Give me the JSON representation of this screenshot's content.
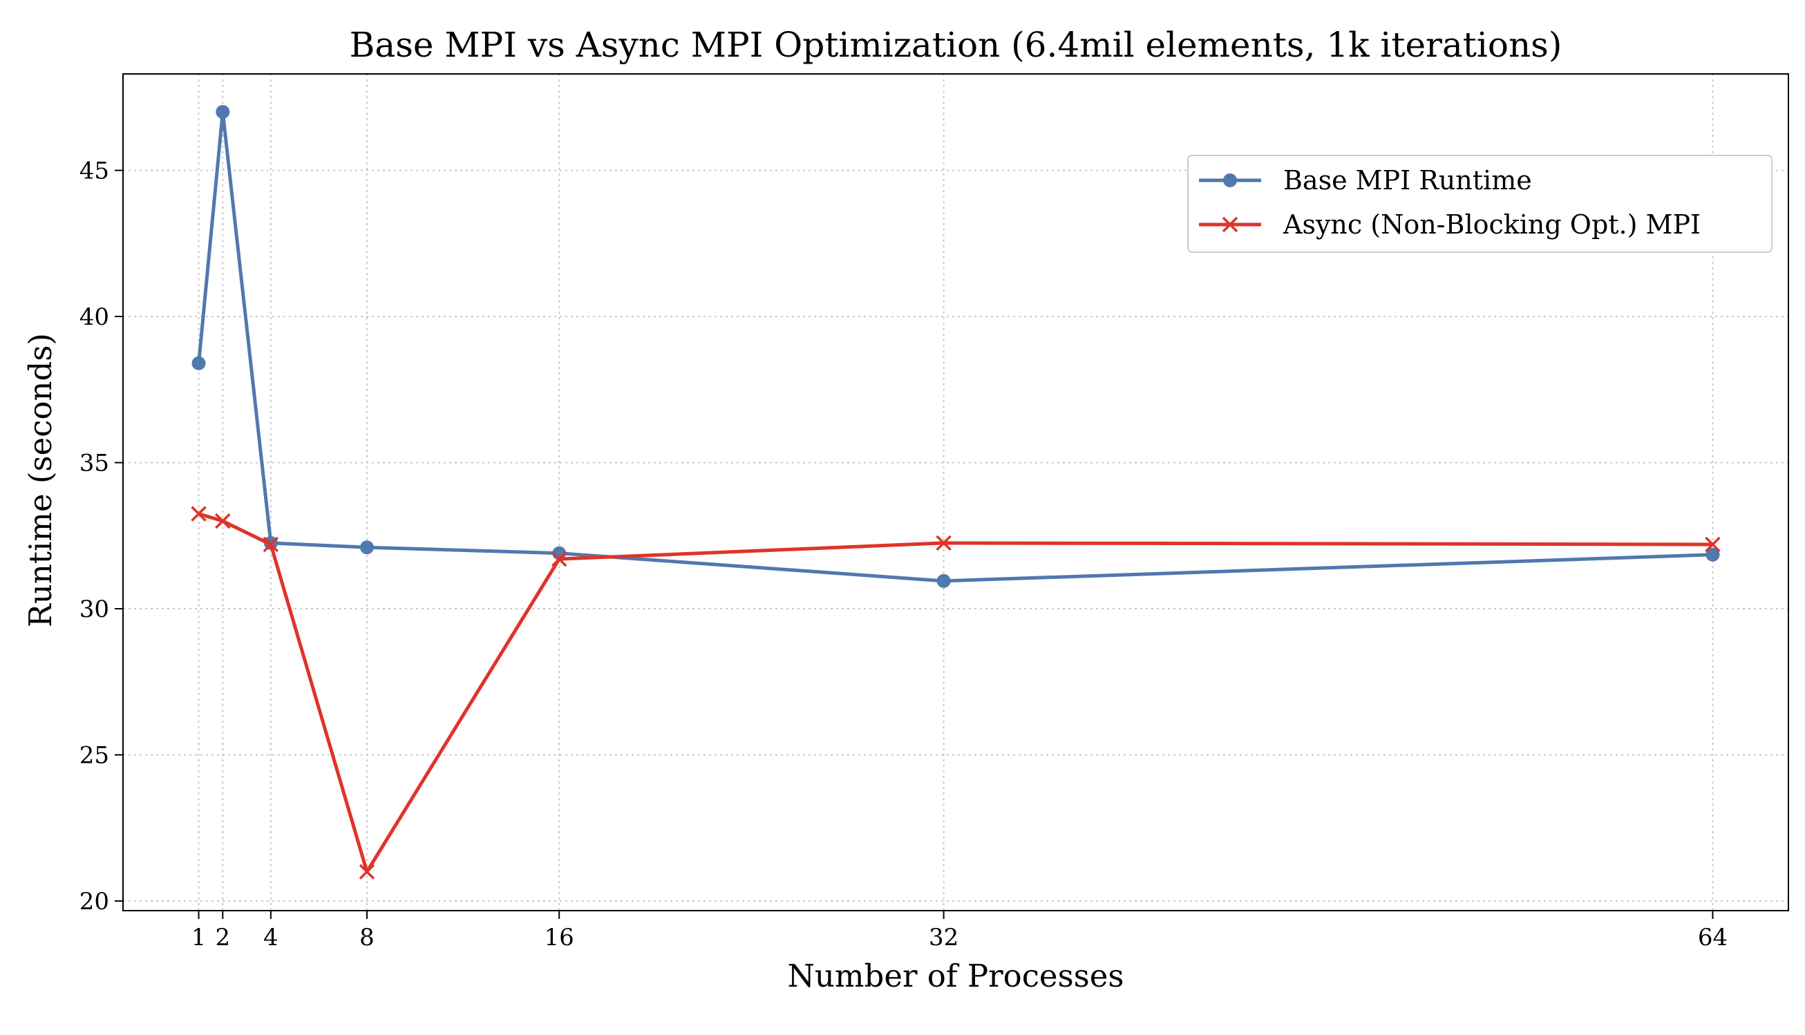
{
  "chart_data": {
    "type": "line",
    "title": "Base MPI vs Async MPI Optimization (6.4mil elements, 1k iterations)",
    "xlabel": "Number of Processes",
    "ylabel": "Runtime (seconds)",
    "x": [
      1,
      2,
      4,
      8,
      16,
      32,
      64
    ],
    "x_tick_labels": [
      "1",
      "2",
      "4",
      "8",
      "16",
      "32",
      "64"
    ],
    "y_ticks": [
      20,
      25,
      30,
      35,
      40,
      45
    ],
    "xlim": [
      -2.15,
      67.15
    ],
    "ylim": [
      19.67,
      48.3
    ],
    "grid": true,
    "legend_position": "upper right",
    "series": [
      {
        "name": "Base MPI Runtime",
        "color": "#5079ad",
        "marker": "circle",
        "values": [
          38.4,
          47.0,
          32.25,
          32.1,
          31.9,
          30.95,
          31.85
        ]
      },
      {
        "name": "Async (Non-Blocking Opt.) MPI",
        "color": "#e0332a",
        "marker": "x",
        "values": [
          33.25,
          33.0,
          32.2,
          21.0,
          31.7,
          32.25,
          32.2
        ]
      }
    ]
  }
}
